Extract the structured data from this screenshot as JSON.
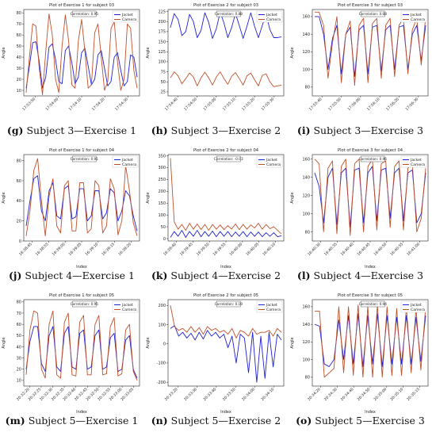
{
  "chart_data": [
    {
      "type": "line",
      "panel": "g",
      "caption_letter": "(g)",
      "caption_text": "Subject 3—Exercise 1",
      "title": "Plot of Exercise 1 for subject 03",
      "xlabel": "",
      "ylabel": "Angle",
      "correlation": "Correlation: 0.95",
      "ylim": [
        5,
        83
      ],
      "yticks": [
        10,
        20,
        30,
        40,
        50,
        60,
        70,
        80
      ],
      "xticks": [
        "17:53:50",
        "17:54:00",
        "17:54:10",
        "17:54:20",
        "17:54:30"
      ],
      "series": [
        {
          "name": "Jacket",
          "color": "#1f1fd6",
          "values": [
            12,
            32,
            53,
            54,
            36,
            12,
            22,
            49,
            52,
            38,
            18,
            16,
            46,
            50,
            35,
            16,
            22,
            44,
            48,
            32,
            15,
            20,
            42,
            46,
            30,
            14,
            18,
            40,
            44,
            28,
            14,
            18,
            42,
            40,
            22
          ]
        },
        {
          "name": "Camera",
          "color": "#c0502a",
          "values": [
            8,
            40,
            70,
            68,
            30,
            6,
            45,
            79,
            60,
            20,
            8,
            50,
            78,
            55,
            15,
            12,
            55,
            74,
            45,
            12,
            15,
            62,
            70,
            40,
            10,
            18,
            66,
            72,
            35,
            10,
            20,
            70,
            66,
            28,
            12
          ]
        }
      ]
    },
    {
      "type": "line",
      "panel": "h",
      "caption_letter": "(h)",
      "caption_text": "Subject 3—Exercise 2",
      "title": "Plot of Exercise 2 for subject 03",
      "xlabel": "",
      "ylabel": "Angle",
      "correlation": "Correlation: 0.88",
      "ylim": [
        15,
        230
      ],
      "yticks": [
        25,
        50,
        75,
        100,
        125,
        150,
        175,
        200,
        225
      ],
      "xticks": [
        "17:54:40",
        "17:54:50",
        "17:55:00",
        "17:55:10",
        "17:55:20",
        "17:55:30"
      ],
      "series": [
        {
          "name": "Jacket",
          "color": "#1f1fd6",
          "values": [
            185,
            220,
            205,
            165,
            175,
            218,
            200,
            160,
            178,
            222,
            198,
            158,
            182,
            224,
            196,
            160,
            185,
            220,
            190,
            158,
            188,
            222,
            188,
            160,
            190,
            218,
            180,
            160,
            160,
            162
          ]
        },
        {
          "name": "Camera",
          "color": "#c0502a",
          "values": [
            60,
            75,
            65,
            45,
            58,
            72,
            62,
            40,
            60,
            74,
            60,
            42,
            62,
            75,
            58,
            44,
            64,
            73,
            58,
            42,
            65,
            72,
            55,
            40,
            66,
            70,
            50,
            38,
            40,
            42
          ]
        }
      ]
    },
    {
      "type": "line",
      "panel": "i",
      "caption_letter": "(i)",
      "caption_text": "Subject 3—Exercise 3",
      "title": "Plot of Exercise 3 for subject 03",
      "xlabel": "",
      "ylabel": "Angle",
      "correlation": "Correlation: 0.68",
      "ylim": [
        70,
        168
      ],
      "yticks": [
        80,
        100,
        120,
        140,
        160
      ],
      "xticks": [
        "17:55:40",
        "17:55:50",
        "17:56:00",
        "17:56:10",
        "17:56:20",
        "17:56:30"
      ],
      "series": [
        {
          "name": "Jacket",
          "color": "#1f1fd6",
          "values": [
            160,
            160,
            140,
            100,
            135,
            150,
            95,
            140,
            148,
            92,
            145,
            150,
            95,
            148,
            150,
            98,
            145,
            150,
            100,
            148,
            150,
            100,
            140,
            150,
            110,
            150
          ]
        },
        {
          "name": "Camera",
          "color": "#c0502a",
          "values": [
            165,
            165,
            150,
            90,
            130,
            160,
            85,
            140,
            155,
            82,
            150,
            158,
            85,
            152,
            158,
            90,
            150,
            158,
            92,
            150,
            158,
            95,
            145,
            158,
            105,
            160
          ]
        }
      ]
    },
    {
      "type": "line",
      "panel": "j",
      "caption_letter": "(j)",
      "caption_text": "Subject 4—Exercise 1",
      "title": "Plot of Exercise 1 for subject 04",
      "xlabel": "Index",
      "ylabel": "Angle",
      "correlation": "Correlation: 0.91",
      "ylim": [
        0,
        86
      ],
      "yticks": [
        0,
        20,
        40,
        60,
        80
      ],
      "xticks": [
        "16:38:45",
        "16:38:55",
        "16:39:00",
        "16:39:05",
        "16:39:10",
        "16:39:15",
        "16:39:20"
      ],
      "series": [
        {
          "name": "Jacket",
          "color": "#1f1fd6",
          "values": [
            15,
            40,
            62,
            65,
            30,
            20,
            50,
            58,
            25,
            22,
            52,
            55,
            22,
            24,
            52,
            52,
            20,
            25,
            50,
            50,
            22,
            28,
            52,
            48,
            20,
            30,
            50,
            45,
            25,
            10
          ]
        },
        {
          "name": "Camera",
          "color": "#c0502a",
          "values": [
            5,
            30,
            70,
            82,
            40,
            5,
            45,
            62,
            15,
            8,
            55,
            60,
            10,
            10,
            58,
            58,
            8,
            12,
            60,
            55,
            8,
            15,
            62,
            52,
            6,
            20,
            75,
            50,
            18,
            5
          ]
        }
      ]
    },
    {
      "type": "line",
      "panel": "k",
      "caption_letter": "(k)",
      "caption_text": "Subject 4—Exercise 2",
      "title": "Plot of Exercise 2 for subject 04",
      "xlabel": "Index",
      "ylabel": "Angle",
      "correlation": "Correlation: -0.03",
      "ylim": [
        -10,
        355
      ],
      "yticks": [
        0,
        50,
        100,
        150,
        200,
        250,
        300,
        350
      ],
      "xticks": [
        "16:39:40",
        "16:39:45",
        "16:39:50",
        "16:39:55",
        "16:40:00",
        "16:40:05",
        "16:40:10"
      ],
      "series": [
        {
          "name": "Jacket",
          "color": "#1f1fd6",
          "values": [
            5,
            30,
            10,
            35,
            5,
            30,
            10,
            35,
            8,
            30,
            10,
            32,
            8,
            30,
            10,
            30,
            8,
            28,
            10,
            30,
            8,
            28,
            10,
            28,
            8,
            25,
            10,
            25,
            8,
            12
          ]
        },
        {
          "name": "Camera",
          "color": "#c0502a",
          "values": [
            340,
            70,
            40,
            60,
            35,
            65,
            40,
            62,
            38,
            60,
            35,
            60,
            40,
            58,
            38,
            55,
            40,
            62,
            38,
            60,
            40,
            58,
            45,
            65,
            40,
            60,
            42,
            50,
            35,
            20
          ]
        }
      ]
    },
    {
      "type": "line",
      "panel": "l",
      "caption_letter": "(l)",
      "caption_text": "Subject 4—Exercise 3",
      "title": "Plot of Exercise 3 for subject 04",
      "xlabel": "Index",
      "ylabel": "Angle",
      "correlation": "Correlation: 0.96",
      "ylim": [
        70,
        165
      ],
      "yticks": [
        80,
        100,
        120,
        140,
        160
      ],
      "xticks": [
        "16:40:30",
        "16:40:35",
        "16:40:40",
        "16:40:45",
        "16:40:50",
        "16:40:55",
        "16:41:00"
      ],
      "series": [
        {
          "name": "Jacket",
          "color": "#1f1fd6",
          "values": [
            145,
            130,
            90,
            140,
            150,
            88,
            145,
            150,
            85,
            148,
            150,
            90,
            145,
            152,
            92,
            148,
            150,
            95,
            145,
            150,
            92,
            145,
            148,
            90,
            100,
            145
          ]
        },
        {
          "name": "Camera",
          "color": "#c0502a",
          "values": [
            160,
            155,
            80,
            150,
            158,
            78,
            152,
            160,
            76,
            155,
            160,
            80,
            152,
            160,
            82,
            155,
            158,
            85,
            152,
            158,
            82,
            150,
            155,
            80,
            95,
            150
          ]
        }
      ]
    },
    {
      "type": "line",
      "panel": "m",
      "caption_letter": "(m)",
      "caption_text": "Subject 5—Exercise 1",
      "title": "Plot of Exercise 1 for subject 05",
      "xlabel": "Index",
      "ylabel": "Angle",
      "correlation": "Correlation: 0.95",
      "ylim": [
        5,
        82
      ],
      "yticks": [
        10,
        20,
        30,
        40,
        50,
        60,
        70,
        80
      ],
      "xticks": [
        "20:32:20",
        "20:32:25",
        "20:32:30",
        "20:32:35",
        "20:32:40",
        "20:32:45",
        "20:32:50",
        "20:32:55",
        "20:33:00",
        "20:33:05"
      ],
      "series": [
        {
          "name": "Jacket",
          "color": "#1f1fd6",
          "values": [
            20,
            45,
            58,
            58,
            25,
            18,
            50,
            58,
            22,
            18,
            52,
            58,
            22,
            20,
            52,
            55,
            20,
            22,
            50,
            55,
            20,
            22,
            48,
            52,
            18,
            20,
            46,
            50,
            20,
            12
          ]
        },
        {
          "name": "Camera",
          "color": "#c0502a",
          "values": [
            15,
            55,
            72,
            70,
            20,
            12,
            60,
            72,
            15,
            12,
            62,
            70,
            15,
            14,
            62,
            68,
            15,
            15,
            60,
            68,
            15,
            16,
            58,
            66,
            14,
            16,
            55,
            60,
            18,
            10
          ]
        }
      ]
    },
    {
      "type": "line",
      "panel": "n",
      "caption_letter": "(n)",
      "caption_text": "Subject 5—Exercise 2",
      "title": "Plot of Exercise 2 for subject 05",
      "xlabel": "Index",
      "ylabel": "Angle",
      "correlation": "Correlation: 0.19",
      "ylim": [
        -220,
        230
      ],
      "yticks": [
        -200,
        -100,
        0,
        100,
        200
      ],
      "xticks": [
        "20:33:20",
        "20:33:30",
        "20:33:40",
        "20:33:50",
        "20:34:00",
        "20:34:10"
      ],
      "series": [
        {
          "name": "Jacket",
          "color": "#1f1fd6",
          "values": [
            80,
            95,
            40,
            60,
            30,
            55,
            20,
            60,
            25,
            70,
            40,
            60,
            30,
            50,
            -20,
            40,
            -100,
            50,
            30,
            -150,
            60,
            -200,
            40,
            -180,
            60,
            -120,
            50,
            20
          ]
        },
        {
          "name": "Camera",
          "color": "#c0502a",
          "values": [
            200,
            90,
            70,
            80,
            60,
            90,
            60,
            85,
            50,
            90,
            70,
            80,
            60,
            70,
            50,
            80,
            30,
            70,
            60,
            40,
            80,
            50,
            60,
            60,
            70,
            40,
            80,
            60
          ]
        }
      ]
    },
    {
      "type": "line",
      "panel": "o",
      "caption_letter": "(o)",
      "caption_text": "Subject 5—Exercise 3",
      "title": "Plot of Exercise 3 for subject 05",
      "xlabel": "Index",
      "ylabel": "Angle",
      "correlation": "Correlation: 0.94",
      "ylim": [
        70,
        168
      ],
      "yticks": [
        80,
        100,
        120,
        140,
        160
      ],
      "xticks": [
        "20:34:20",
        "20:34:30",
        "20:34:40",
        "20:34:50",
        "20:35:00",
        "20:35:10",
        "20:35:15"
      ],
      "series": [
        {
          "name": "Jacket",
          "color": "#1f1fd6",
          "values": [
            140,
            138,
            95,
            92,
            100,
            145,
            100,
            150,
            95,
            152,
            92,
            150,
            95,
            152,
            92,
            150,
            95,
            148,
            95,
            150,
            95,
            148,
            98,
            150
          ]
        },
        {
          "name": "Camera",
          "color": "#c0502a",
          "values": [
            155,
            155,
            80,
            85,
            90,
            160,
            85,
            160,
            82,
            162,
            80,
            160,
            80,
            162,
            80,
            160,
            82,
            158,
            82,
            160,
            85,
            158,
            88,
            160
          ]
        }
      ]
    }
  ]
}
